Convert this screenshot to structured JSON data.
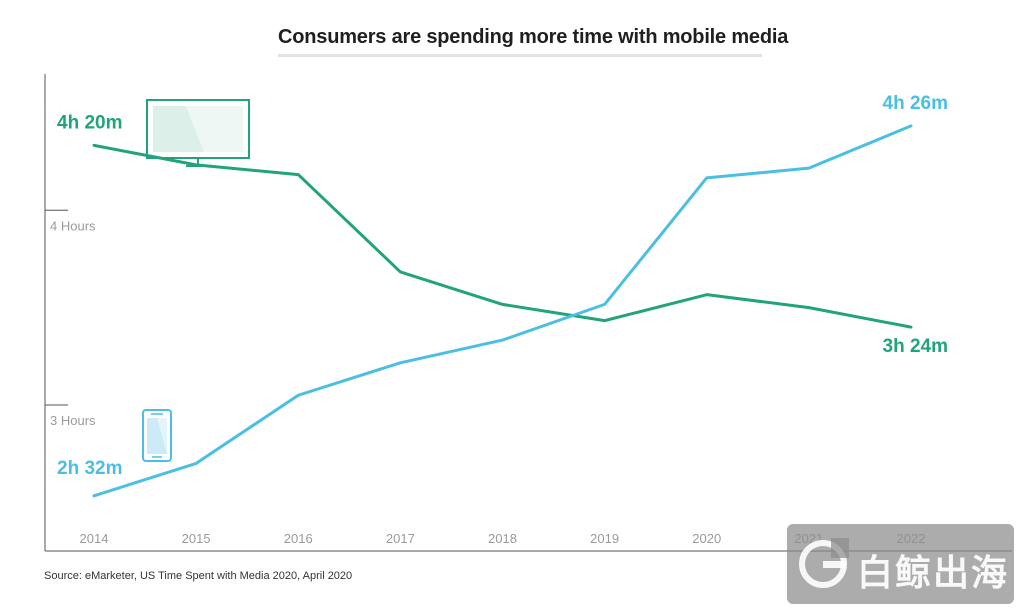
{
  "chart_data": {
    "type": "line",
    "title": "Consumers are spending more time with mobile media",
    "x": [
      "2014",
      "2015",
      "2016",
      "2017",
      "2018",
      "2019",
      "2020",
      "2021",
      "2022"
    ],
    "y_tick_labels": [
      "4 Hours",
      "3 Hours"
    ],
    "y_ticks_minutes": [
      240,
      180
    ],
    "ylim_minutes": [
      135,
      282
    ],
    "series": [
      {
        "name": "TV",
        "color": "#21a37c",
        "values_minutes": [
          260,
          254,
          251,
          221,
          211,
          206,
          214,
          210,
          204
        ],
        "start_label": "4h 20m",
        "end_label": "3h 24m"
      },
      {
        "name": "Mobile",
        "color": "#4bbfe3",
        "values_minutes": [
          152,
          162,
          183,
          193,
          200,
          211,
          250,
          253,
          266
        ],
        "start_label": "2h 32m",
        "end_label": "4h 26m"
      }
    ]
  },
  "source": "Source: eMarketer, US Time Spent with Media 2020, April 2020",
  "watermark": "白鲸出海",
  "icons": {
    "tv": "tv-icon",
    "phone": "phone-icon"
  }
}
